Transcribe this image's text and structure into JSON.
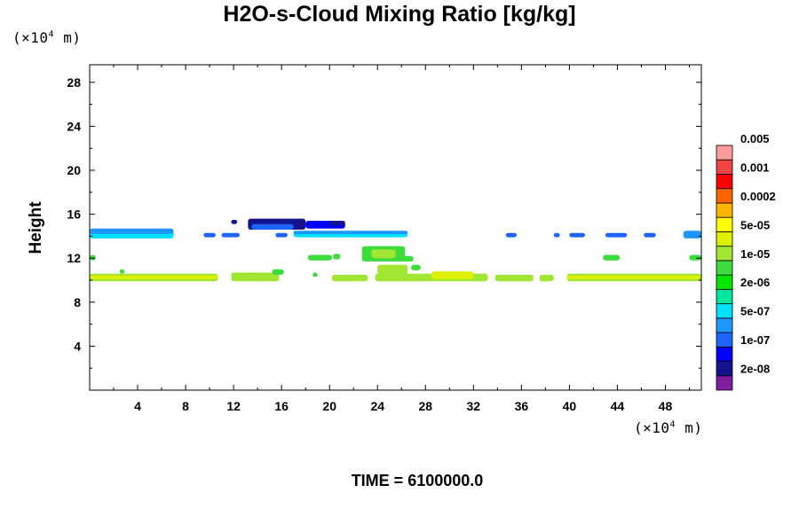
{
  "chart_data": {
    "type": "heatmap",
    "title": "H2O-s-Cloud Mixing Ratio [kg/kg]",
    "xlabel": "",
    "ylabel": "Height",
    "x_unit_prefix": "(×10",
    "x_unit_exp": "4",
    "x_unit_suffix": " m)",
    "y_unit_prefix": "(×10",
    "y_unit_exp": "4",
    "y_unit_suffix": " m)",
    "xlim": [
      0,
      51
    ],
    "ylim": [
      0,
      29.6
    ],
    "x_ticks": [
      "4",
      "8",
      "12",
      "16",
      "20",
      "24",
      "28",
      "32",
      "36",
      "40",
      "44",
      "48"
    ],
    "x_tick_values": [
      4,
      8,
      12,
      16,
      20,
      24,
      28,
      32,
      36,
      40,
      44,
      48
    ],
    "y_ticks": [
      "4",
      "8",
      "12",
      "16",
      "20",
      "24",
      "28"
    ],
    "y_tick_values": [
      4,
      8,
      12,
      16,
      20,
      24,
      28
    ],
    "colorbar": {
      "colors": [
        "#7b1fa2",
        "#14148c",
        "#0000ff",
        "#1e64ff",
        "#1e96ff",
        "#00e0ff",
        "#00e69a",
        "#00e600",
        "#3cdc3c",
        "#a0e632",
        "#dcf000",
        "#ffff00",
        "#ffb400",
        "#ff6400",
        "#ff0000",
        "#f04646",
        "#ff9a9a"
      ],
      "labels": [
        "2e-08",
        "1e-07",
        "5e-07",
        "2e-06",
        "1e-05",
        "5e-05",
        "0.0002",
        "0.001",
        "0.005"
      ]
    },
    "regions": [
      {
        "x0": 0,
        "x1": 7,
        "y0": 13.8,
        "y1": 14.5,
        "color": "#00e0ff"
      },
      {
        "x0": 0,
        "x1": 7,
        "y0": 14.2,
        "y1": 14.7,
        "color": "#1e96ff"
      },
      {
        "x0": 9.5,
        "x1": 10.5,
        "y0": 13.9,
        "y1": 14.3,
        "color": "#1e64ff"
      },
      {
        "x0": 11,
        "x1": 12.5,
        "y0": 13.9,
        "y1": 14.3,
        "color": "#1e64ff"
      },
      {
        "x0": 15.5,
        "x1": 16.5,
        "y0": 13.9,
        "y1": 14.3,
        "color": "#1e64ff"
      },
      {
        "x0": 17,
        "x1": 26.5,
        "y0": 13.9,
        "y1": 14.4,
        "color": "#00e0ff"
      },
      {
        "x0": 17,
        "x1": 26.5,
        "y0": 14.2,
        "y1": 14.5,
        "color": "#1e96ff"
      },
      {
        "x0": 13.2,
        "x1": 18,
        "y0": 14.6,
        "y1": 15.6,
        "color": "#14148c"
      },
      {
        "x0": 13.5,
        "x1": 17,
        "y0": 14.6,
        "y1": 15.1,
        "color": "#1e64ff"
      },
      {
        "x0": 18,
        "x1": 21.3,
        "y0": 14.7,
        "y1": 15.4,
        "color": "#0000ff"
      },
      {
        "x0": 20,
        "x1": 21.3,
        "y0": 15.0,
        "y1": 15.4,
        "color": "#14148c"
      },
      {
        "x0": 11.8,
        "x1": 12.3,
        "y0": 15.1,
        "y1": 15.5,
        "color": "#14148c"
      },
      {
        "x0": 34.7,
        "x1": 35.6,
        "y0": 13.9,
        "y1": 14.3,
        "color": "#1e64ff"
      },
      {
        "x0": 38.7,
        "x1": 39.2,
        "y0": 13.9,
        "y1": 14.3,
        "color": "#1e64ff"
      },
      {
        "x0": 40,
        "x1": 41.3,
        "y0": 13.9,
        "y1": 14.3,
        "color": "#1e64ff"
      },
      {
        "x0": 43,
        "x1": 44.8,
        "y0": 13.9,
        "y1": 14.3,
        "color": "#1e64ff"
      },
      {
        "x0": 46.2,
        "x1": 47.2,
        "y0": 13.9,
        "y1": 14.3,
        "color": "#1e64ff"
      },
      {
        "x0": 49.5,
        "x1": 51,
        "y0": 13.8,
        "y1": 14.5,
        "color": "#1e96ff"
      },
      {
        "x0": 0,
        "x1": 10.7,
        "y0": 9.9,
        "y1": 10.6,
        "color": "#a0e632"
      },
      {
        "x0": 0,
        "x1": 10.7,
        "y0": 10.1,
        "y1": 10.4,
        "color": "#dcf000"
      },
      {
        "x0": 11.8,
        "x1": 15.8,
        "y0": 9.9,
        "y1": 10.7,
        "color": "#a0e632"
      },
      {
        "x0": 15.2,
        "x1": 16.2,
        "y0": 10.5,
        "y1": 11.0,
        "color": "#3cdc3c"
      },
      {
        "x0": 20.2,
        "x1": 23.2,
        "y0": 9.9,
        "y1": 10.5,
        "color": "#a0e632"
      },
      {
        "x0": 23.8,
        "x1": 33.2,
        "y0": 9.9,
        "y1": 10.6,
        "color": "#a0e632"
      },
      {
        "x0": 28.5,
        "x1": 32,
        "y0": 10.1,
        "y1": 10.8,
        "color": "#dcf000"
      },
      {
        "x0": 33.8,
        "x1": 37,
        "y0": 9.9,
        "y1": 10.5,
        "color": "#a0e632"
      },
      {
        "x0": 37.5,
        "x1": 38.7,
        "y0": 9.9,
        "y1": 10.5,
        "color": "#a0e632"
      },
      {
        "x0": 39.8,
        "x1": 51,
        "y0": 9.9,
        "y1": 10.6,
        "color": "#a0e632"
      },
      {
        "x0": 39.8,
        "x1": 51,
        "y0": 10.1,
        "y1": 10.4,
        "color": "#dcf000"
      },
      {
        "x0": 24,
        "x1": 26.5,
        "y0": 10.5,
        "y1": 11.4,
        "color": "#a0e632"
      },
      {
        "x0": 26.8,
        "x1": 27.6,
        "y0": 10.9,
        "y1": 11.4,
        "color": "#3cdc3c"
      },
      {
        "x0": 22.7,
        "x1": 26.3,
        "y0": 11.7,
        "y1": 13.1,
        "color": "#3cdc3c"
      },
      {
        "x0": 23.5,
        "x1": 25.5,
        "y0": 12.0,
        "y1": 12.8,
        "color": "#a0e632"
      },
      {
        "x0": 25.8,
        "x1": 27,
        "y0": 11.7,
        "y1": 12.2,
        "color": "#3cdc3c"
      },
      {
        "x0": 18.2,
        "x1": 20.2,
        "y0": 11.8,
        "y1": 12.3,
        "color": "#3cdc3c"
      },
      {
        "x0": 20.3,
        "x1": 20.9,
        "y0": 11.9,
        "y1": 12.4,
        "color": "#3cdc3c"
      },
      {
        "x0": 42.8,
        "x1": 44.2,
        "y0": 11.8,
        "y1": 12.3,
        "color": "#3cdc3c"
      },
      {
        "x0": 50,
        "x1": 51,
        "y0": 11.8,
        "y1": 12.3,
        "color": "#3cdc3c"
      },
      {
        "x0": 0,
        "x1": 0.5,
        "y0": 11.8,
        "y1": 12.3,
        "color": "#3cdc3c"
      },
      {
        "x0": 2.5,
        "x1": 2.9,
        "y0": 10.6,
        "y1": 11.0,
        "color": "#3cdc3c"
      },
      {
        "x0": 18.6,
        "x1": 19.0,
        "y0": 10.3,
        "y1": 10.7,
        "color": "#3cdc3c"
      }
    ]
  },
  "footer": {
    "time_label": "TIME = 6100000.0"
  }
}
